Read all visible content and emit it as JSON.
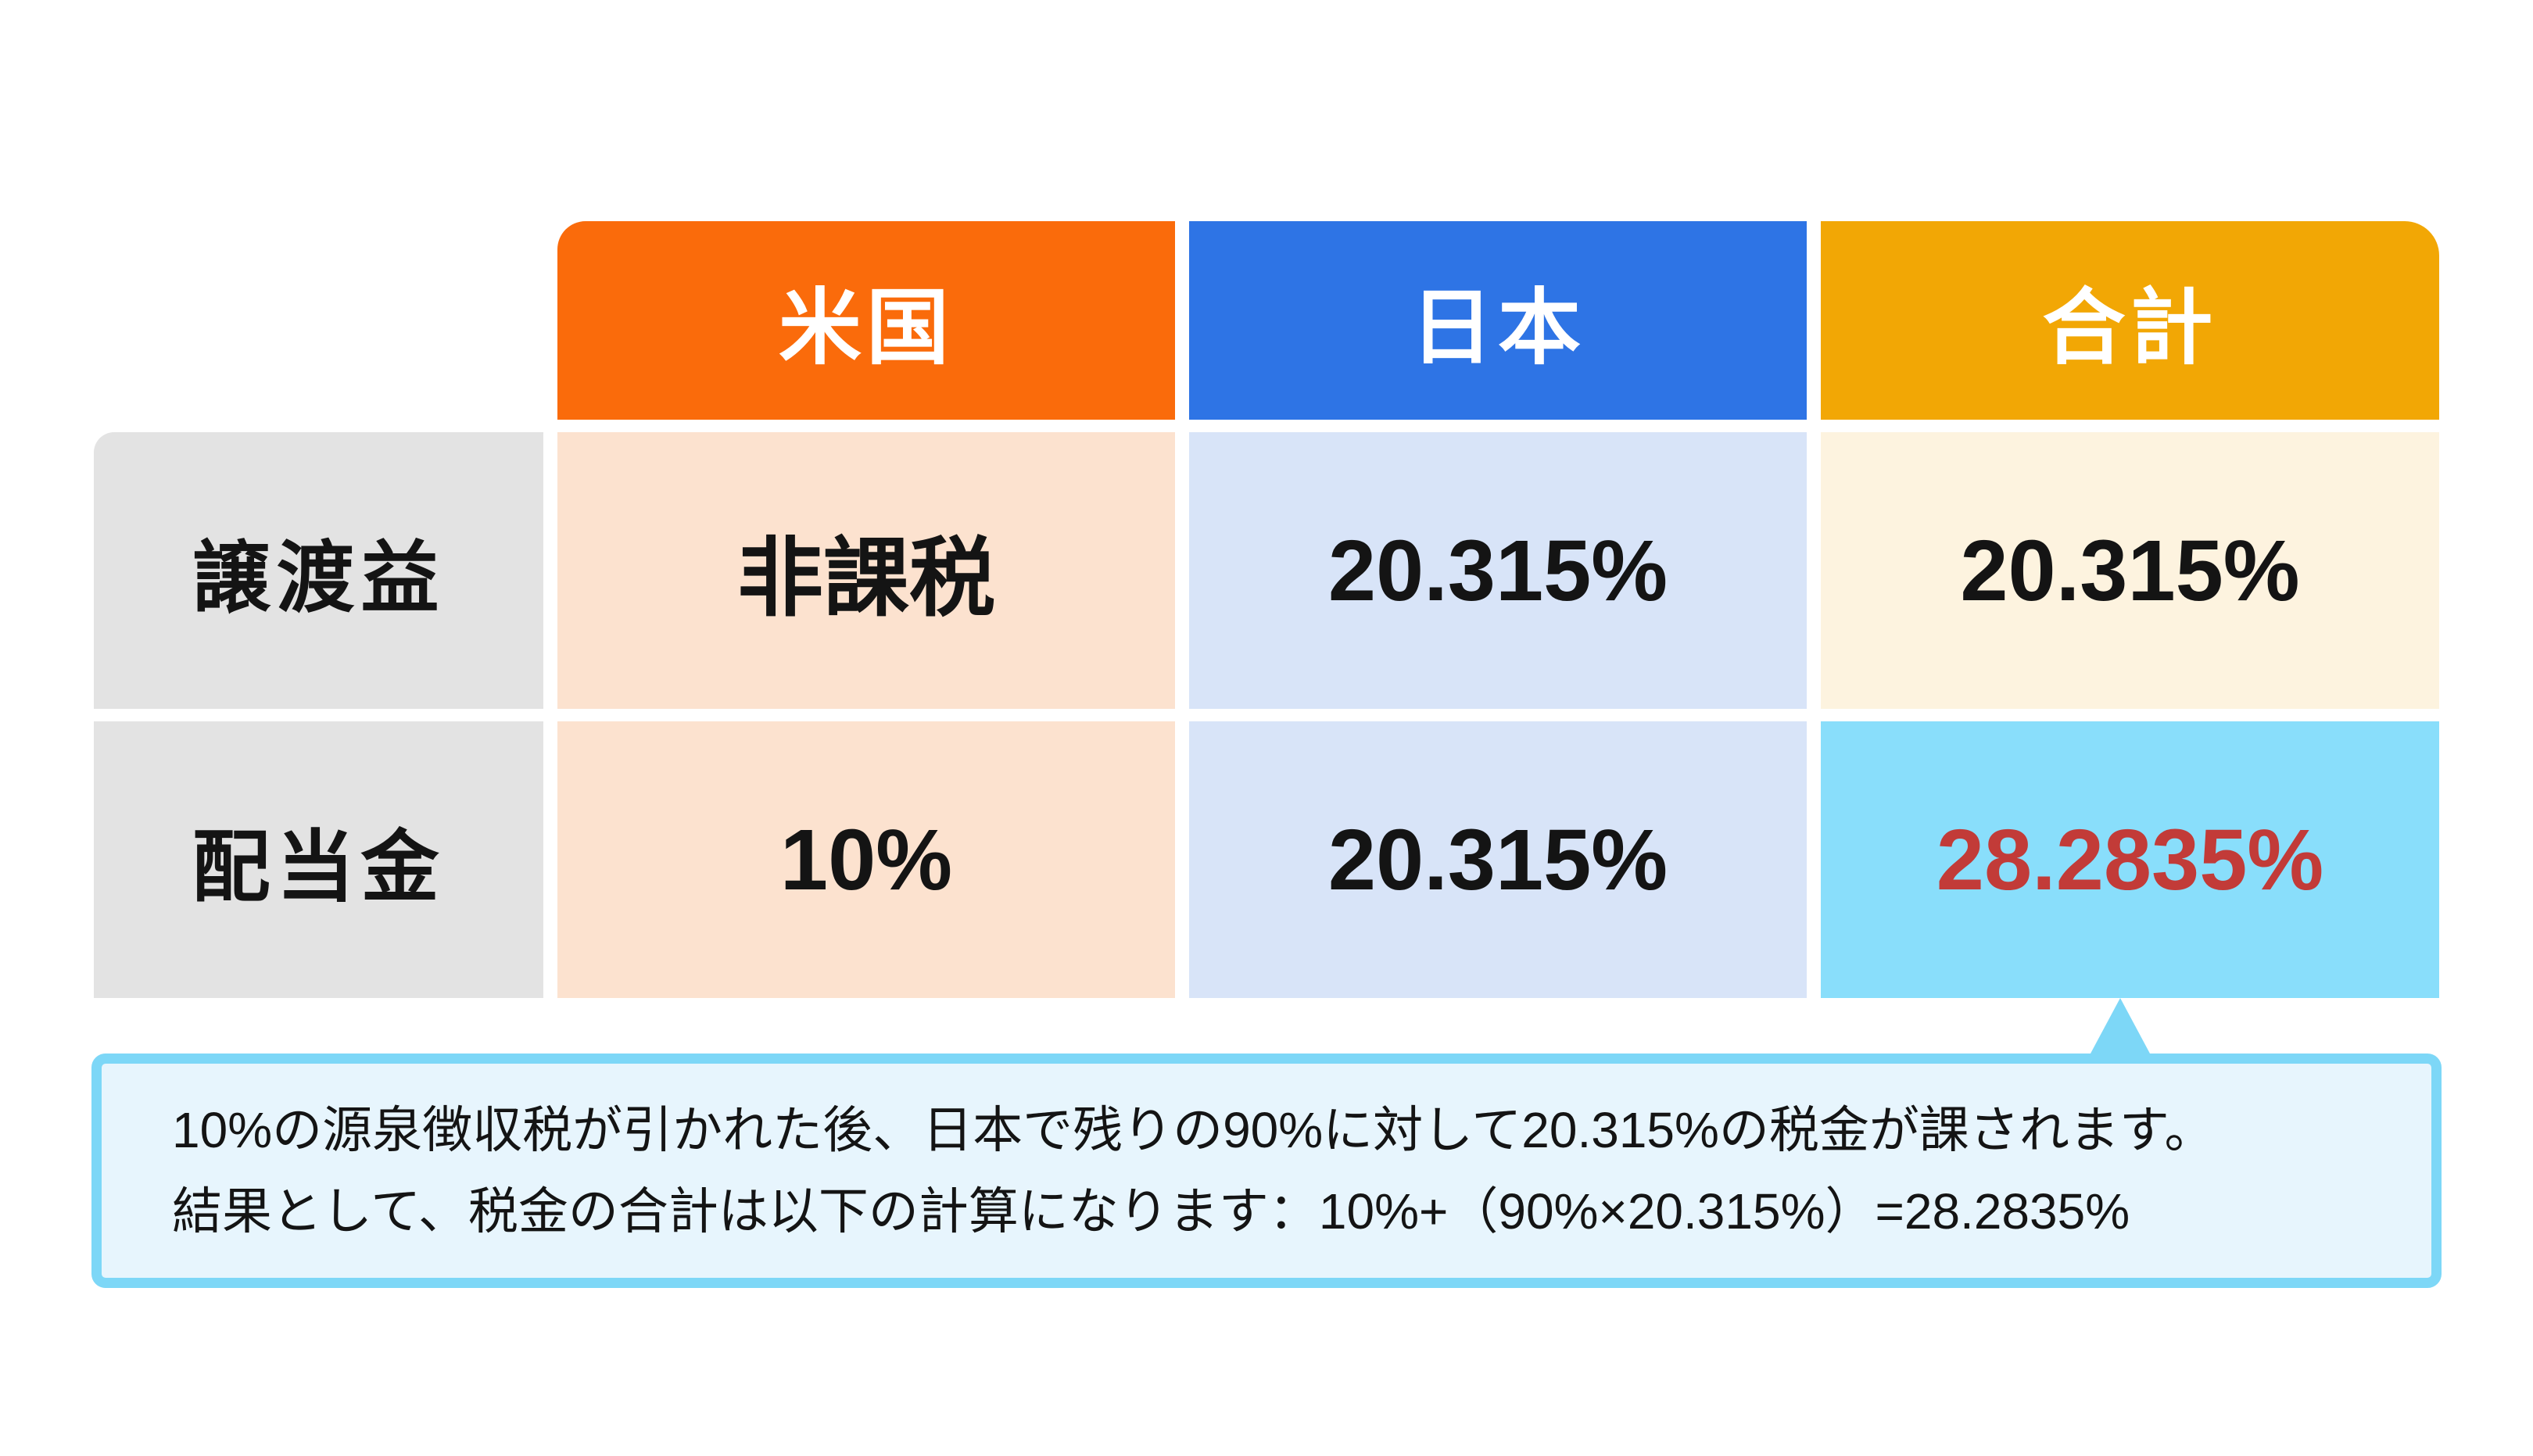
{
  "colors": {
    "background": "#FFFFFF",
    "header_us": "#FA6B0B",
    "header_japan": "#2E74E5",
    "header_total": "#F2A705",
    "header_text": "#FFFFFF",
    "cell_us": "#FCE2CF",
    "cell_japan": "#D8E4F8",
    "cell_total": "#FDF3DF",
    "cell_highlight": "#89DEFB",
    "label_bg": "#E3E3E3",
    "note_bg": "#E7F5FD",
    "note_border": "#7DD7F7",
    "highlight_text": "#C23B38",
    "text": "#141414"
  },
  "table": {
    "columns": [
      {
        "key": "us",
        "label": "米国"
      },
      {
        "key": "japan",
        "label": "日本"
      },
      {
        "key": "total",
        "label": "合計"
      }
    ],
    "rows": [
      {
        "label": "譲渡益",
        "values": [
          "非課税",
          "20.315%",
          "20.315%"
        ]
      },
      {
        "label": "配当金",
        "values": [
          "10%",
          "20.315%",
          "28.2835%"
        ]
      }
    ]
  },
  "note": {
    "line1": "10%の源泉徴収税が引かれた後、日本で残りの90%に対して20.315%の税金が課されます。",
    "line2": "結果として、税金の合計は以下の計算になります：10%+（90%×20.315%）=28.2835%"
  },
  "chart_data": {
    "type": "table",
    "title": "",
    "columns": [
      "",
      "米国",
      "日本",
      "合計"
    ],
    "rows": [
      {
        "label": "譲渡益",
        "values": [
          "非課税",
          "20.315%",
          "20.315%"
        ]
      },
      {
        "label": "配当金",
        "values": [
          "10%",
          "20.315%",
          "28.2835%"
        ]
      }
    ],
    "highlight": {
      "row": "配当金",
      "column": "合計",
      "value": "28.2835%",
      "note": "10%の源泉徴収税が引かれた後、日本で残りの90%に対して20.315%の税金が課されます。結果として、税金の合計は以下の計算になります：10%+（90%×20.315%）=28.2835%"
    },
    "legend_position": "none",
    "grid": false
  }
}
